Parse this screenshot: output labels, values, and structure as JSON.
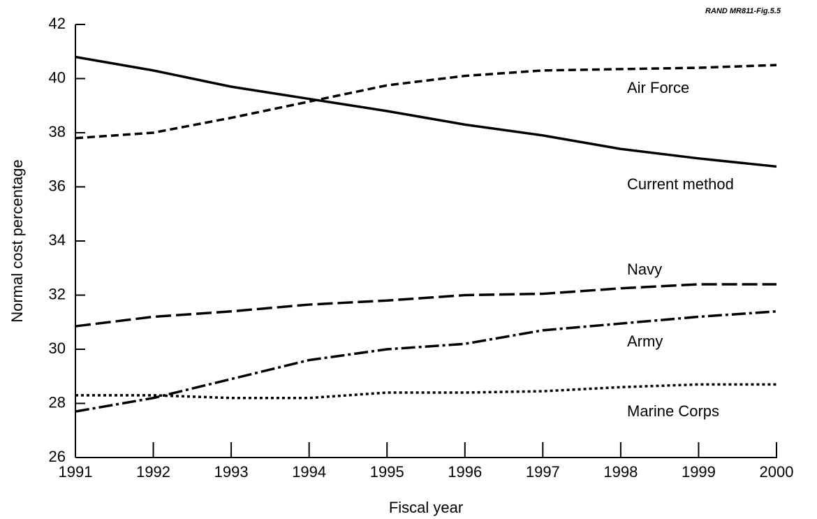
{
  "chart_data": {
    "type": "line",
    "source": "RAND MR811-Fig.5.5",
    "xlabel": "Fiscal year",
    "ylabel": "Normal cost percentage",
    "x": [
      1991,
      1992,
      1993,
      1994,
      1995,
      1996,
      1997,
      1998,
      1999,
      2000
    ],
    "xlim": [
      1991,
      2000
    ],
    "xticks": [
      1991,
      1992,
      1993,
      1994,
      1995,
      1996,
      1997,
      1998,
      1999,
      2000
    ],
    "ylim": [
      26,
      42
    ],
    "yticks": [
      26,
      28,
      30,
      32,
      34,
      36,
      38,
      40,
      42
    ],
    "grid": false,
    "series": [
      {
        "name": "Air Force",
        "color": "#000000",
        "line_style": "dashed",
        "values": [
          37.8,
          38.0,
          38.55,
          39.15,
          39.75,
          40.1,
          40.3,
          40.35,
          40.4,
          40.5
        ]
      },
      {
        "name": "Current method",
        "color": "#000000",
        "line_style": "solid",
        "values": [
          40.8,
          40.3,
          39.7,
          39.25,
          38.8,
          38.3,
          37.9,
          37.4,
          37.05,
          36.75
        ]
      },
      {
        "name": "Navy",
        "color": "#000000",
        "line_style": "long-dashed",
        "values": [
          30.85,
          31.2,
          31.4,
          31.65,
          31.8,
          32.0,
          32.05,
          32.25,
          32.4,
          32.4
        ]
      },
      {
        "name": "Army",
        "color": "#000000",
        "line_style": "dash-dot",
        "values": [
          27.7,
          28.2,
          28.9,
          29.6,
          30.0,
          30.2,
          30.7,
          30.95,
          31.2,
          31.4
        ]
      },
      {
        "name": "Marine Corps",
        "color": "#000000",
        "line_style": "dotted",
        "values": [
          28.3,
          28.3,
          28.2,
          28.2,
          28.4,
          28.4,
          28.45,
          28.6,
          28.7,
          28.7
        ]
      }
    ]
  }
}
